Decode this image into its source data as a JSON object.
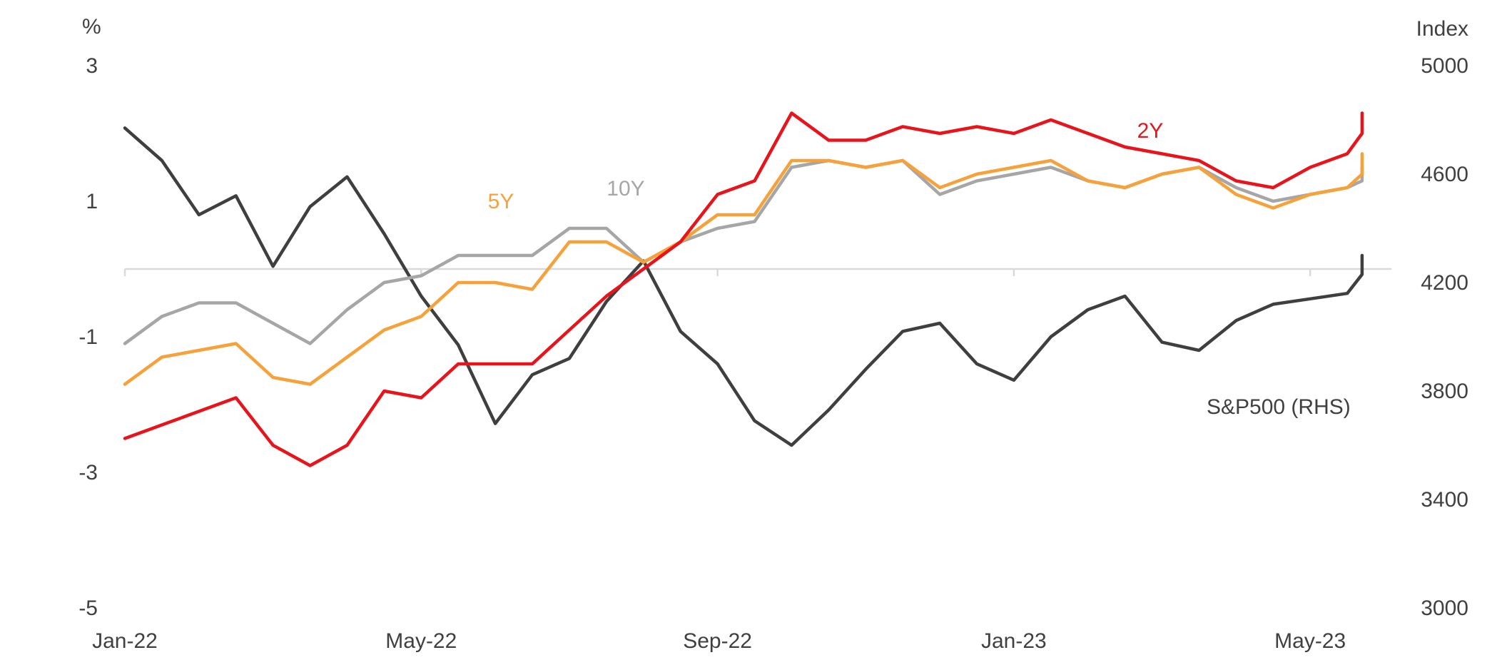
{
  "chart_data": {
    "type": "line",
    "left_axis": {
      "unit": "%",
      "ticks": [
        3,
        1,
        -1,
        -3,
        -5
      ],
      "range": [
        -5,
        3
      ]
    },
    "right_axis": {
      "unit": "Index",
      "ticks": [
        5000,
        4600,
        4200,
        3800,
        3400,
        3000
      ],
      "range": [
        3000,
        5000
      ]
    },
    "x_axis": {
      "ticks": [
        "Jan-22",
        "May-22",
        "Sep-22",
        "Jan-23",
        "May-23"
      ],
      "range": [
        "2022-01",
        "2023-06"
      ]
    },
    "zero_line": true,
    "grid": false,
    "colors": {
      "2y": "#e8141c",
      "5y": "#f7a13b",
      "10y": "#a6a6a6",
      "spx": "#3f3f3f",
      "axis": "#d9d9d9",
      "text": "#404040"
    },
    "series": [
      {
        "name": "2Y",
        "axis": "left",
        "x": [
          "2022-01",
          "2022-01",
          "2022-02",
          "2022-02",
          "2022-03",
          "2022-03",
          "2022-04",
          "2022-04",
          "2022-05",
          "2022-05",
          "2022-06",
          "2022-06",
          "2022-07",
          "2022-07",
          "2022-08",
          "2022-08",
          "2022-09",
          "2022-09",
          "2022-10",
          "2022-10",
          "2022-11",
          "2022-11",
          "2022-12",
          "2022-12",
          "2023-01",
          "2023-01",
          "2023-02",
          "2023-02",
          "2023-03",
          "2023-03",
          "2023-04",
          "2023-04",
          "2023-05",
          "2023-05",
          "2023-06",
          "2023-06"
        ],
        "y": [
          -2.5,
          -2.3,
          -2.1,
          -1.9,
          -2.6,
          -2.9,
          -2.6,
          -1.8,
          -1.9,
          -1.4,
          -1.4,
          -1.4,
          -0.9,
          -0.4,
          0.0,
          0.4,
          1.1,
          1.3,
          2.3,
          1.9,
          1.9,
          2.1,
          2.0,
          2.1,
          2.0,
          2.2,
          2.0,
          1.8,
          1.7,
          1.6,
          1.3,
          1.2,
          1.5,
          1.7,
          2.0,
          2.3
        ]
      },
      {
        "name": "5Y",
        "axis": "left",
        "x": [
          "2022-01",
          "2022-01",
          "2022-02",
          "2022-02",
          "2022-03",
          "2022-03",
          "2022-04",
          "2022-04",
          "2022-05",
          "2022-05",
          "2022-06",
          "2022-06",
          "2022-07",
          "2022-07",
          "2022-08",
          "2022-08",
          "2022-09",
          "2022-09",
          "2022-10",
          "2022-10",
          "2022-11",
          "2022-11",
          "2022-12",
          "2022-12",
          "2023-01",
          "2023-01",
          "2023-02",
          "2023-02",
          "2023-03",
          "2023-03",
          "2023-04",
          "2023-04",
          "2023-05",
          "2023-05",
          "2023-06",
          "2023-06"
        ],
        "y": [
          -1.7,
          -1.3,
          -1.2,
          -1.1,
          -1.6,
          -1.7,
          -1.3,
          -0.9,
          -0.7,
          -0.2,
          -0.2,
          -0.3,
          0.4,
          0.4,
          0.1,
          0.4,
          0.8,
          0.8,
          1.6,
          1.6,
          1.5,
          1.6,
          1.2,
          1.4,
          1.5,
          1.6,
          1.3,
          1.2,
          1.4,
          1.5,
          1.1,
          0.9,
          1.1,
          1.2,
          1.4,
          1.7
        ]
      },
      {
        "name": "10Y",
        "axis": "left",
        "x": [
          "2022-01",
          "2022-01",
          "2022-02",
          "2022-02",
          "2022-03",
          "2022-03",
          "2022-04",
          "2022-04",
          "2022-05",
          "2022-05",
          "2022-06",
          "2022-06",
          "2022-07",
          "2022-07",
          "2022-08",
          "2022-08",
          "2022-09",
          "2022-09",
          "2022-10",
          "2022-10",
          "2022-11",
          "2022-11",
          "2022-12",
          "2022-12",
          "2023-01",
          "2023-01",
          "2023-02",
          "2023-02",
          "2023-03",
          "2023-03",
          "2023-04",
          "2023-04",
          "2023-05",
          "2023-05",
          "2023-06",
          "2023-06"
        ],
        "y": [
          -1.1,
          -0.7,
          -0.5,
          -0.5,
          -0.8,
          -1.1,
          -0.6,
          -0.2,
          -0.1,
          0.2,
          0.2,
          0.2,
          0.6,
          0.6,
          0.1,
          0.4,
          0.6,
          0.7,
          1.5,
          1.6,
          1.5,
          1.6,
          1.1,
          1.3,
          1.4,
          1.5,
          1.3,
          1.2,
          1.4,
          1.5,
          1.2,
          1.0,
          1.1,
          1.2,
          1.3,
          1.5
        ]
      },
      {
        "name": "S&P500 (RHS)",
        "axis": "right",
        "x": [
          "2022-01",
          "2022-01",
          "2022-02",
          "2022-02",
          "2022-03",
          "2022-03",
          "2022-04",
          "2022-04",
          "2022-05",
          "2022-05",
          "2022-06",
          "2022-06",
          "2022-07",
          "2022-07",
          "2022-08",
          "2022-08",
          "2022-09",
          "2022-09",
          "2022-10",
          "2022-10",
          "2022-11",
          "2022-11",
          "2022-12",
          "2022-12",
          "2023-01",
          "2023-01",
          "2023-02",
          "2023-02",
          "2023-03",
          "2023-03",
          "2023-04",
          "2023-04",
          "2023-05",
          "2023-05",
          "2023-06",
          "2023-06"
        ],
        "y": [
          4770,
          4650,
          4450,
          4520,
          4260,
          4480,
          4590,
          4380,
          4150,
          3970,
          3680,
          3860,
          3920,
          4130,
          4280,
          4020,
          3900,
          3690,
          3600,
          3730,
          3880,
          4020,
          4050,
          3900,
          3840,
          4000,
          4100,
          4150,
          3980,
          3950,
          4060,
          4120,
          4140,
          4160,
          4230,
          4300
        ]
      }
    ]
  }
}
